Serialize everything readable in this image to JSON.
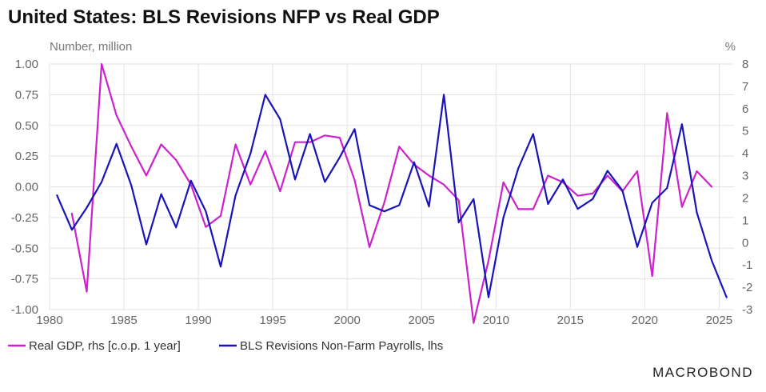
{
  "chart_data": {
    "type": "line",
    "title": "United States: BLS Revisions NFP vs Real GDP",
    "left_axis_label": "Number, million",
    "right_axis_label": "%",
    "xlim": [
      1980,
      2026
    ],
    "x_ticks": [
      1980,
      1985,
      1990,
      1995,
      2000,
      2005,
      2010,
      2015,
      2020,
      2025
    ],
    "x_tick_labels": [
      "1980",
      "1985",
      "1990",
      "1995",
      "2000",
      "2005",
      "2010",
      "2015",
      "2020",
      "2025"
    ],
    "ylim_left": [
      -1.0,
      1.0
    ],
    "y_left_ticks": [
      1.0,
      0.75,
      0.5,
      0.25,
      0.0,
      -0.25,
      -0.5,
      -0.75,
      -1.0
    ],
    "y_left_tick_labels": [
      "1.00",
      "0.75",
      "0.50",
      "0.25",
      "0.00",
      "-0.25",
      "-0.50",
      "-0.75",
      "-1.00"
    ],
    "ylim_right": [
      -3,
      8
    ],
    "y_right_ticks": [
      8,
      7,
      6,
      5,
      4,
      3,
      2,
      1,
      0,
      -1,
      -2,
      -3
    ],
    "y_right_tick_labels": [
      "8",
      "7",
      "6",
      "5",
      "4",
      "3",
      "2",
      "1",
      "0",
      "-1",
      "-2",
      "-3"
    ],
    "grid": true,
    "legend_position": "bottom-left",
    "series": [
      {
        "name": "Real GDP, rhs [c.o.p. 1 year]",
        "axis": "right",
        "color": "#cc22cc",
        "x": [
          1981.5,
          1982.5,
          1983.5,
          1984.5,
          1985.5,
          1986.5,
          1987.5,
          1988.5,
          1989.5,
          1990.5,
          1991.5,
          1992.5,
          1993.5,
          1994.5,
          1995.5,
          1996.5,
          1997.5,
          1998.5,
          1999.5,
          2000.5,
          2001.5,
          2002.5,
          2003.5,
          2004.5,
          2005.5,
          2006.5,
          2007.5,
          2008.5,
          2009.5,
          2010.5,
          2011.5,
          2012.5,
          2013.5,
          2014.5,
          2015.5,
          2016.5,
          2017.5,
          2018.5,
          2019.5,
          2020.5,
          2021.5,
          2022.5,
          2023.5,
          2024.5
        ],
        "values": [
          1.3,
          -2.2,
          8.0,
          5.7,
          4.3,
          3.0,
          4.4,
          3.7,
          2.6,
          0.7,
          1.2,
          4.4,
          2.6,
          4.1,
          2.3,
          4.5,
          4.5,
          4.8,
          4.7,
          2.8,
          -0.2,
          1.8,
          4.3,
          3.5,
          3.0,
          2.6,
          1.9,
          -3.6,
          -0.8,
          2.7,
          1.5,
          1.5,
          3.0,
          2.7,
          2.1,
          2.2,
          3.0,
          2.3,
          3.2,
          -1.5,
          5.8,
          1.6,
          3.2,
          2.5
        ]
      },
      {
        "name": "BLS Revisions Non-Farm Payrolls, lhs",
        "axis": "left",
        "color": "#1a14b8",
        "x": [
          1980.5,
          1981.5,
          1982.5,
          1983.5,
          1984.5,
          1985.5,
          1986.5,
          1987.5,
          1988.5,
          1989.5,
          1990.5,
          1991.5,
          1992.5,
          1993.5,
          1994.5,
          1995.5,
          1996.5,
          1997.5,
          1998.5,
          1999.5,
          2000.5,
          2001.5,
          2002.5,
          2003.5,
          2004.5,
          2005.5,
          2006.5,
          2007.5,
          2008.5,
          2009.5,
          2010.5,
          2011.5,
          2012.5,
          2013.5,
          2014.5,
          2015.5,
          2016.5,
          2017.5,
          2018.5,
          2019.5,
          2020.5,
          2021.5,
          2022.5,
          2023.5,
          2024.5,
          2025.5
        ],
        "values": [
          -0.07,
          -0.35,
          -0.17,
          0.04,
          0.35,
          0.01,
          -0.47,
          -0.06,
          -0.33,
          0.05,
          -0.2,
          -0.65,
          -0.07,
          0.27,
          0.75,
          0.55,
          0.06,
          0.43,
          0.04,
          0.24,
          0.47,
          -0.15,
          -0.2,
          -0.15,
          0.2,
          -0.16,
          0.75,
          -0.29,
          -0.1,
          -0.9,
          -0.25,
          0.15,
          0.43,
          -0.14,
          0.06,
          -0.18,
          -0.1,
          0.13,
          -0.03,
          -0.49,
          -0.13,
          -0.01,
          0.51,
          -0.21,
          -0.6,
          -0.9
        ]
      }
    ]
  },
  "footer": {
    "brand": "MACROBOND"
  }
}
